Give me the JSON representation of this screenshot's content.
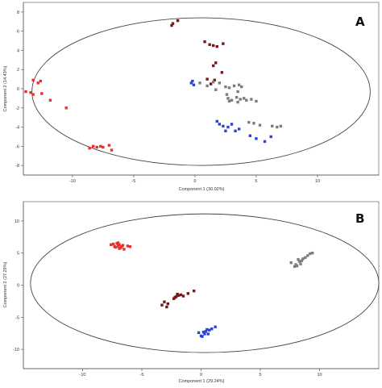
{
  "chart_data": [
    {
      "type": "scatter",
      "panel_label": "A",
      "xlabel": "Component 1 (30.02%)",
      "ylabel": "Component 2 (14.43%)",
      "xlim": [
        -14,
        15
      ],
      "ylim": [
        -9,
        9
      ],
      "xticks": [
        -10,
        -5,
        0,
        5,
        10
      ],
      "yticks": [
        -8,
        -6,
        -4,
        -2,
        0,
        2,
        4,
        6,
        8
      ],
      "grid": false,
      "legend": "none",
      "ellipse": {
        "cx": 0.5,
        "cy": -0.3,
        "rx": 13.8,
        "ry": 7.7
      },
      "series": [
        {
          "color": "#e8302c",
          "points": [
            [
              -13.2,
              0.9
            ],
            [
              -12.8,
              0.6
            ],
            [
              -12.6,
              0.8
            ],
            [
              -13.8,
              -0.3
            ],
            [
              -13.4,
              -0.4
            ],
            [
              -13.2,
              -0.6
            ],
            [
              -12.5,
              -0.5
            ],
            [
              -11.8,
              -1.2
            ],
            [
              -10.5,
              -2.0
            ],
            [
              -8.6,
              -6.2
            ],
            [
              -8.3,
              -6.0
            ],
            [
              -8.0,
              -6.1
            ],
            [
              -7.7,
              -6.0
            ],
            [
              -7.5,
              -6.1
            ],
            [
              -7.0,
              -5.9
            ],
            [
              -6.8,
              -6.4
            ]
          ]
        },
        {
          "color": "#7a1616",
          "points": [
            [
              -1.8,
              6.8
            ],
            [
              -1.4,
              7.1
            ],
            [
              -1.9,
              6.6
            ],
            [
              0.8,
              4.9
            ],
            [
              1.2,
              4.6
            ],
            [
              1.5,
              4.5
            ],
            [
              1.8,
              4.4
            ],
            [
              2.3,
              4.7
            ],
            [
              1.7,
              2.7
            ],
            [
              1.5,
              2.4
            ],
            [
              2.2,
              1.7
            ],
            [
              1.0,
              1.0
            ],
            [
              1.6,
              0.9
            ],
            [
              1.3,
              0.5
            ]
          ]
        },
        {
          "color": "#7d7d7d",
          "points": [
            [
              0.4,
              0.6
            ],
            [
              1.0,
              0.3
            ],
            [
              1.5,
              0.7
            ],
            [
              1.7,
              -0.1
            ],
            [
              2.0,
              0.6
            ],
            [
              2.5,
              0.2
            ],
            [
              2.6,
              -0.6
            ],
            [
              2.8,
              0.1
            ],
            [
              3.2,
              0.3
            ],
            [
              3.5,
              -0.3
            ],
            [
              3.6,
              0.4
            ],
            [
              3.8,
              0.2
            ],
            [
              2.7,
              -1.0
            ],
            [
              3.0,
              -1.2
            ],
            [
              3.4,
              -0.9
            ],
            [
              3.7,
              -1.1
            ],
            [
              4.0,
              -1.0
            ],
            [
              4.2,
              -1.2
            ],
            [
              4.6,
              -1.1
            ],
            [
              5.0,
              -1.3
            ],
            [
              3.5,
              -1.4
            ],
            [
              2.8,
              -1.3
            ],
            [
              4.4,
              -3.5
            ],
            [
              4.8,
              -3.6
            ],
            [
              5.3,
              -3.8
            ],
            [
              6.3,
              -3.9
            ],
            [
              6.7,
              -4.0
            ],
            [
              7.0,
              -3.9
            ]
          ]
        },
        {
          "color": "#2b44d6",
          "points": [
            [
              -0.3,
              0.6
            ],
            [
              -0.1,
              0.4
            ],
            [
              -0.2,
              0.8
            ],
            [
              1.8,
              -3.4
            ],
            [
              2.0,
              -3.7
            ],
            [
              2.3,
              -3.9
            ],
            [
              2.5,
              -4.4
            ],
            [
              2.7,
              -4.0
            ],
            [
              3.0,
              -3.7
            ],
            [
              3.3,
              -4.4
            ],
            [
              3.6,
              -4.2
            ],
            [
              4.5,
              -4.9
            ],
            [
              5.0,
              -5.2
            ],
            [
              5.7,
              -5.5
            ],
            [
              6.2,
              -5.0
            ]
          ]
        }
      ]
    },
    {
      "type": "scatter",
      "panel_label": "B",
      "xlabel": "Component 1 (29.24%)",
      "ylabel": "Component 2 (27.29%)",
      "xlim": [
        -15,
        15
      ],
      "ylim": [
        -13,
        13
      ],
      "xticks": [
        -10,
        -5,
        0,
        5,
        10
      ],
      "yticks": [
        -10,
        -5,
        0,
        5,
        10
      ],
      "grid": false,
      "legend": "none",
      "ellipse": {
        "cx": 0.3,
        "cy": 0.3,
        "rx": 14.7,
        "ry": 10.8
      },
      "series": [
        {
          "color": "#e8302c",
          "points": [
            [
              -7.6,
              6.3
            ],
            [
              -7.3,
              6.0
            ],
            [
              -7.1,
              6.5
            ],
            [
              -7.0,
              6.1
            ],
            [
              -6.9,
              6.3
            ],
            [
              -6.8,
              5.8
            ],
            [
              -7.2,
              5.9
            ],
            [
              -6.6,
              6.2
            ],
            [
              -6.5,
              5.6
            ],
            [
              -7.4,
              6.4
            ],
            [
              -6.9,
              5.7
            ],
            [
              -6.2,
              6.1
            ],
            [
              -6.0,
              6.0
            ],
            [
              -7.0,
              6.6
            ],
            [
              -6.7,
              6.0
            ]
          ]
        },
        {
          "color": "#7a1616",
          "points": [
            [
              -3.3,
              -3.1
            ],
            [
              -3.1,
              -2.6
            ],
            [
              -2.9,
              -3.4
            ],
            [
              -2.8,
              -2.9
            ],
            [
              -2.3,
              -2.1
            ],
            [
              -2.1,
              -1.8
            ],
            [
              -2.0,
              -1.4
            ],
            [
              -1.9,
              -1.6
            ],
            [
              -1.7,
              -1.5
            ],
            [
              -1.5,
              -1.7
            ],
            [
              -1.1,
              -1.3
            ],
            [
              -0.6,
              -0.9
            ],
            [
              -2.2,
              -1.9
            ]
          ]
        },
        {
          "color": "#2b44d6",
          "points": [
            [
              -0.2,
              -7.4
            ],
            [
              0.0,
              -7.9
            ],
            [
              0.1,
              -8.0
            ],
            [
              0.3,
              -7.6
            ],
            [
              0.4,
              -7.2
            ],
            [
              0.5,
              -6.9
            ],
            [
              0.7,
              -7.0
            ],
            [
              0.9,
              -6.8
            ],
            [
              1.2,
              -6.5
            ],
            [
              0.2,
              -7.3
            ],
            [
              0.6,
              -7.6
            ]
          ]
        },
        {
          "color": "#7d7d7d",
          "points": [
            [
              7.6,
              3.5
            ],
            [
              7.9,
              2.9
            ],
            [
              8.0,
              3.2
            ],
            [
              8.2,
              4.0
            ],
            [
              8.3,
              3.7
            ],
            [
              8.4,
              3.3
            ],
            [
              8.6,
              4.1
            ],
            [
              8.8,
              4.3
            ],
            [
              9.0,
              4.6
            ],
            [
              9.2,
              4.9
            ],
            [
              9.4,
              5.0
            ],
            [
              8.1,
              3.0
            ],
            [
              8.5,
              3.8
            ]
          ]
        }
      ]
    }
  ]
}
